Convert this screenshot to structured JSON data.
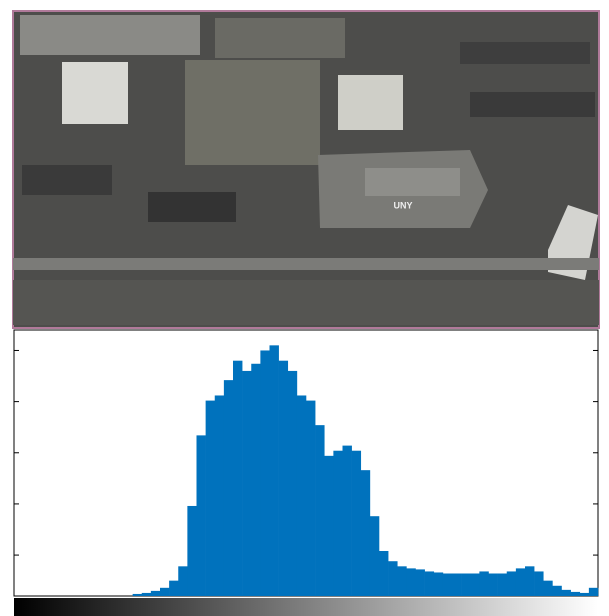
{
  "photo": {
    "building_text": "UNY"
  },
  "chart_data": {
    "type": "histogram",
    "color": "#0072bd",
    "bins": [
      0,
      4,
      8,
      12,
      16,
      20,
      24,
      28,
      32,
      36,
      40,
      44,
      48,
      52,
      56,
      60,
      64,
      68,
      72,
      76,
      80,
      84,
      88,
      92,
      96,
      100,
      104,
      108,
      112,
      116,
      120,
      124,
      128,
      132,
      136,
      140,
      144,
      148,
      152,
      156,
      160,
      164,
      168,
      172,
      176,
      180,
      184,
      188,
      192,
      196,
      200,
      204,
      208,
      212,
      216,
      220,
      224,
      228,
      232,
      236,
      240,
      244,
      248,
      252,
      256
    ],
    "values": [
      0,
      0,
      0,
      0,
      0,
      0,
      0,
      0,
      0,
      0,
      0,
      0,
      0,
      10,
      15,
      25,
      40,
      75,
      145,
      440,
      785,
      955,
      980,
      1055,
      1150,
      1100,
      1135,
      1200,
      1225,
      1150,
      1100,
      980,
      955,
      835,
      685,
      710,
      735,
      710,
      615,
      390,
      220,
      170,
      145,
      135,
      130,
      120,
      115,
      110,
      110,
      110,
      110,
      120,
      110,
      110,
      120,
      135,
      145,
      120,
      75,
      50,
      30,
      20,
      15,
      40
    ],
    "xlim": [
      0,
      256
    ],
    "ylim": [
      0,
      1300
    ],
    "yticks": [
      200,
      450,
      700,
      950,
      1200
    ]
  }
}
